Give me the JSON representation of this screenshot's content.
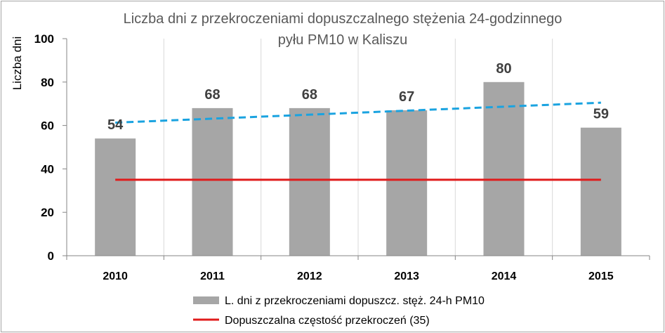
{
  "chart_data": {
    "type": "bar",
    "title_line1": "Liczba dni z przekroczeniami dopuszczalnego stężenia 24-godzinnego",
    "title_line2": "pyłu PM10 w Kaliszu",
    "ylabel": "Liczba dni",
    "xlabel": "",
    "ylim": [
      0,
      100
    ],
    "yticks": [
      0,
      20,
      40,
      60,
      80,
      100
    ],
    "grid": "vertical-category-lines",
    "categories": [
      "2010",
      "2011",
      "2012",
      "2013",
      "2014",
      "2015"
    ],
    "series": [
      {
        "name": "L. dni z przekroczeniami dopuszcz. stęż. 24-h PM10",
        "type": "bar",
        "color": "#a6a6a6",
        "values": [
          54,
          68,
          68,
          67,
          80,
          59
        ],
        "data_labels": [
          "54",
          "68",
          "68",
          "67",
          "80",
          "59"
        ]
      },
      {
        "name": "Dopuszczalna częstość przekroczeń (35)",
        "type": "line",
        "color": "#e01b1b",
        "values": [
          35,
          35,
          35,
          35,
          35,
          35
        ]
      }
    ],
    "trendline": {
      "of_series": 0,
      "type": "linear",
      "color": "#1aa3e0",
      "style": "dashed",
      "values": [
        61.3,
        63.2,
        65.0,
        66.8,
        68.7,
        70.5
      ]
    },
    "legend_position": "bottom"
  }
}
